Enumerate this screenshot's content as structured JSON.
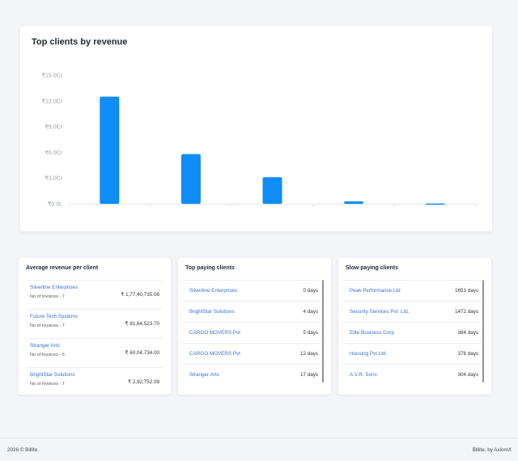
{
  "chart": {
    "title": "Top clients by revenue"
  },
  "chart_data": {
    "type": "bar",
    "categories": [
      "",
      "",
      "",
      "",
      ""
    ],
    "values": [
      12.5,
      5.8,
      3.1,
      0.28,
      0.03
    ],
    "yticks": [
      "₹0.0L",
      "₹3.0Cr",
      "₹6.0Cr",
      "₹9.0Cr",
      "₹12.0Cr",
      "₹15.0Cr"
    ],
    "ylim": [
      0,
      15
    ],
    "bar_color": "#0f8cf5"
  },
  "avg_revenue": {
    "title": "Average revenue per client",
    "rows": [
      {
        "name": "Silverline Enterprises",
        "sub": "No of Invoices - 7",
        "amount": "₹ 1,77,40,735.06"
      },
      {
        "name": "Future Tech Systems",
        "sub": "No of Invoices - 7",
        "amount": "₹ 81,64,523.70"
      },
      {
        "name": "Stranger Arts",
        "sub": "No of Invoices - 5",
        "amount": "₹ 60,04,734.00"
      },
      {
        "name": "BrightStar Solutions",
        "sub": "No of Invoices - 7",
        "amount": "₹ 2,92,752.09"
      }
    ]
  },
  "top_paying": {
    "title": "Top paying clients",
    "rows": [
      {
        "name": "Silverline Enterprises",
        "days": "0 days"
      },
      {
        "name": "BrightStar Solutions",
        "days": "4 days"
      },
      {
        "name": "CARGO MOVERS Pvt",
        "days": "5 days"
      },
      {
        "name": "CARGO MOVERS Pvt",
        "days": "12 days"
      },
      {
        "name": "Stranger Arts",
        "days": "17 days"
      }
    ]
  },
  "slow_paying": {
    "title": "Slow paying clients",
    "rows": [
      {
        "name": "Peak Performance Ltd",
        "days": "1651 days"
      },
      {
        "name": "Security Services Pvt. Ltd.",
        "days": "1472 days"
      },
      {
        "name": "Elite Business Corp",
        "days": "384 days"
      },
      {
        "name": "Housing Pvt Ltd",
        "days": "376 days"
      },
      {
        "name": "A.V.R. Sons",
        "days": "304 days"
      }
    ]
  },
  "footer": {
    "left": "2026 © Billite.",
    "right": "Billite, by AxiomX"
  }
}
